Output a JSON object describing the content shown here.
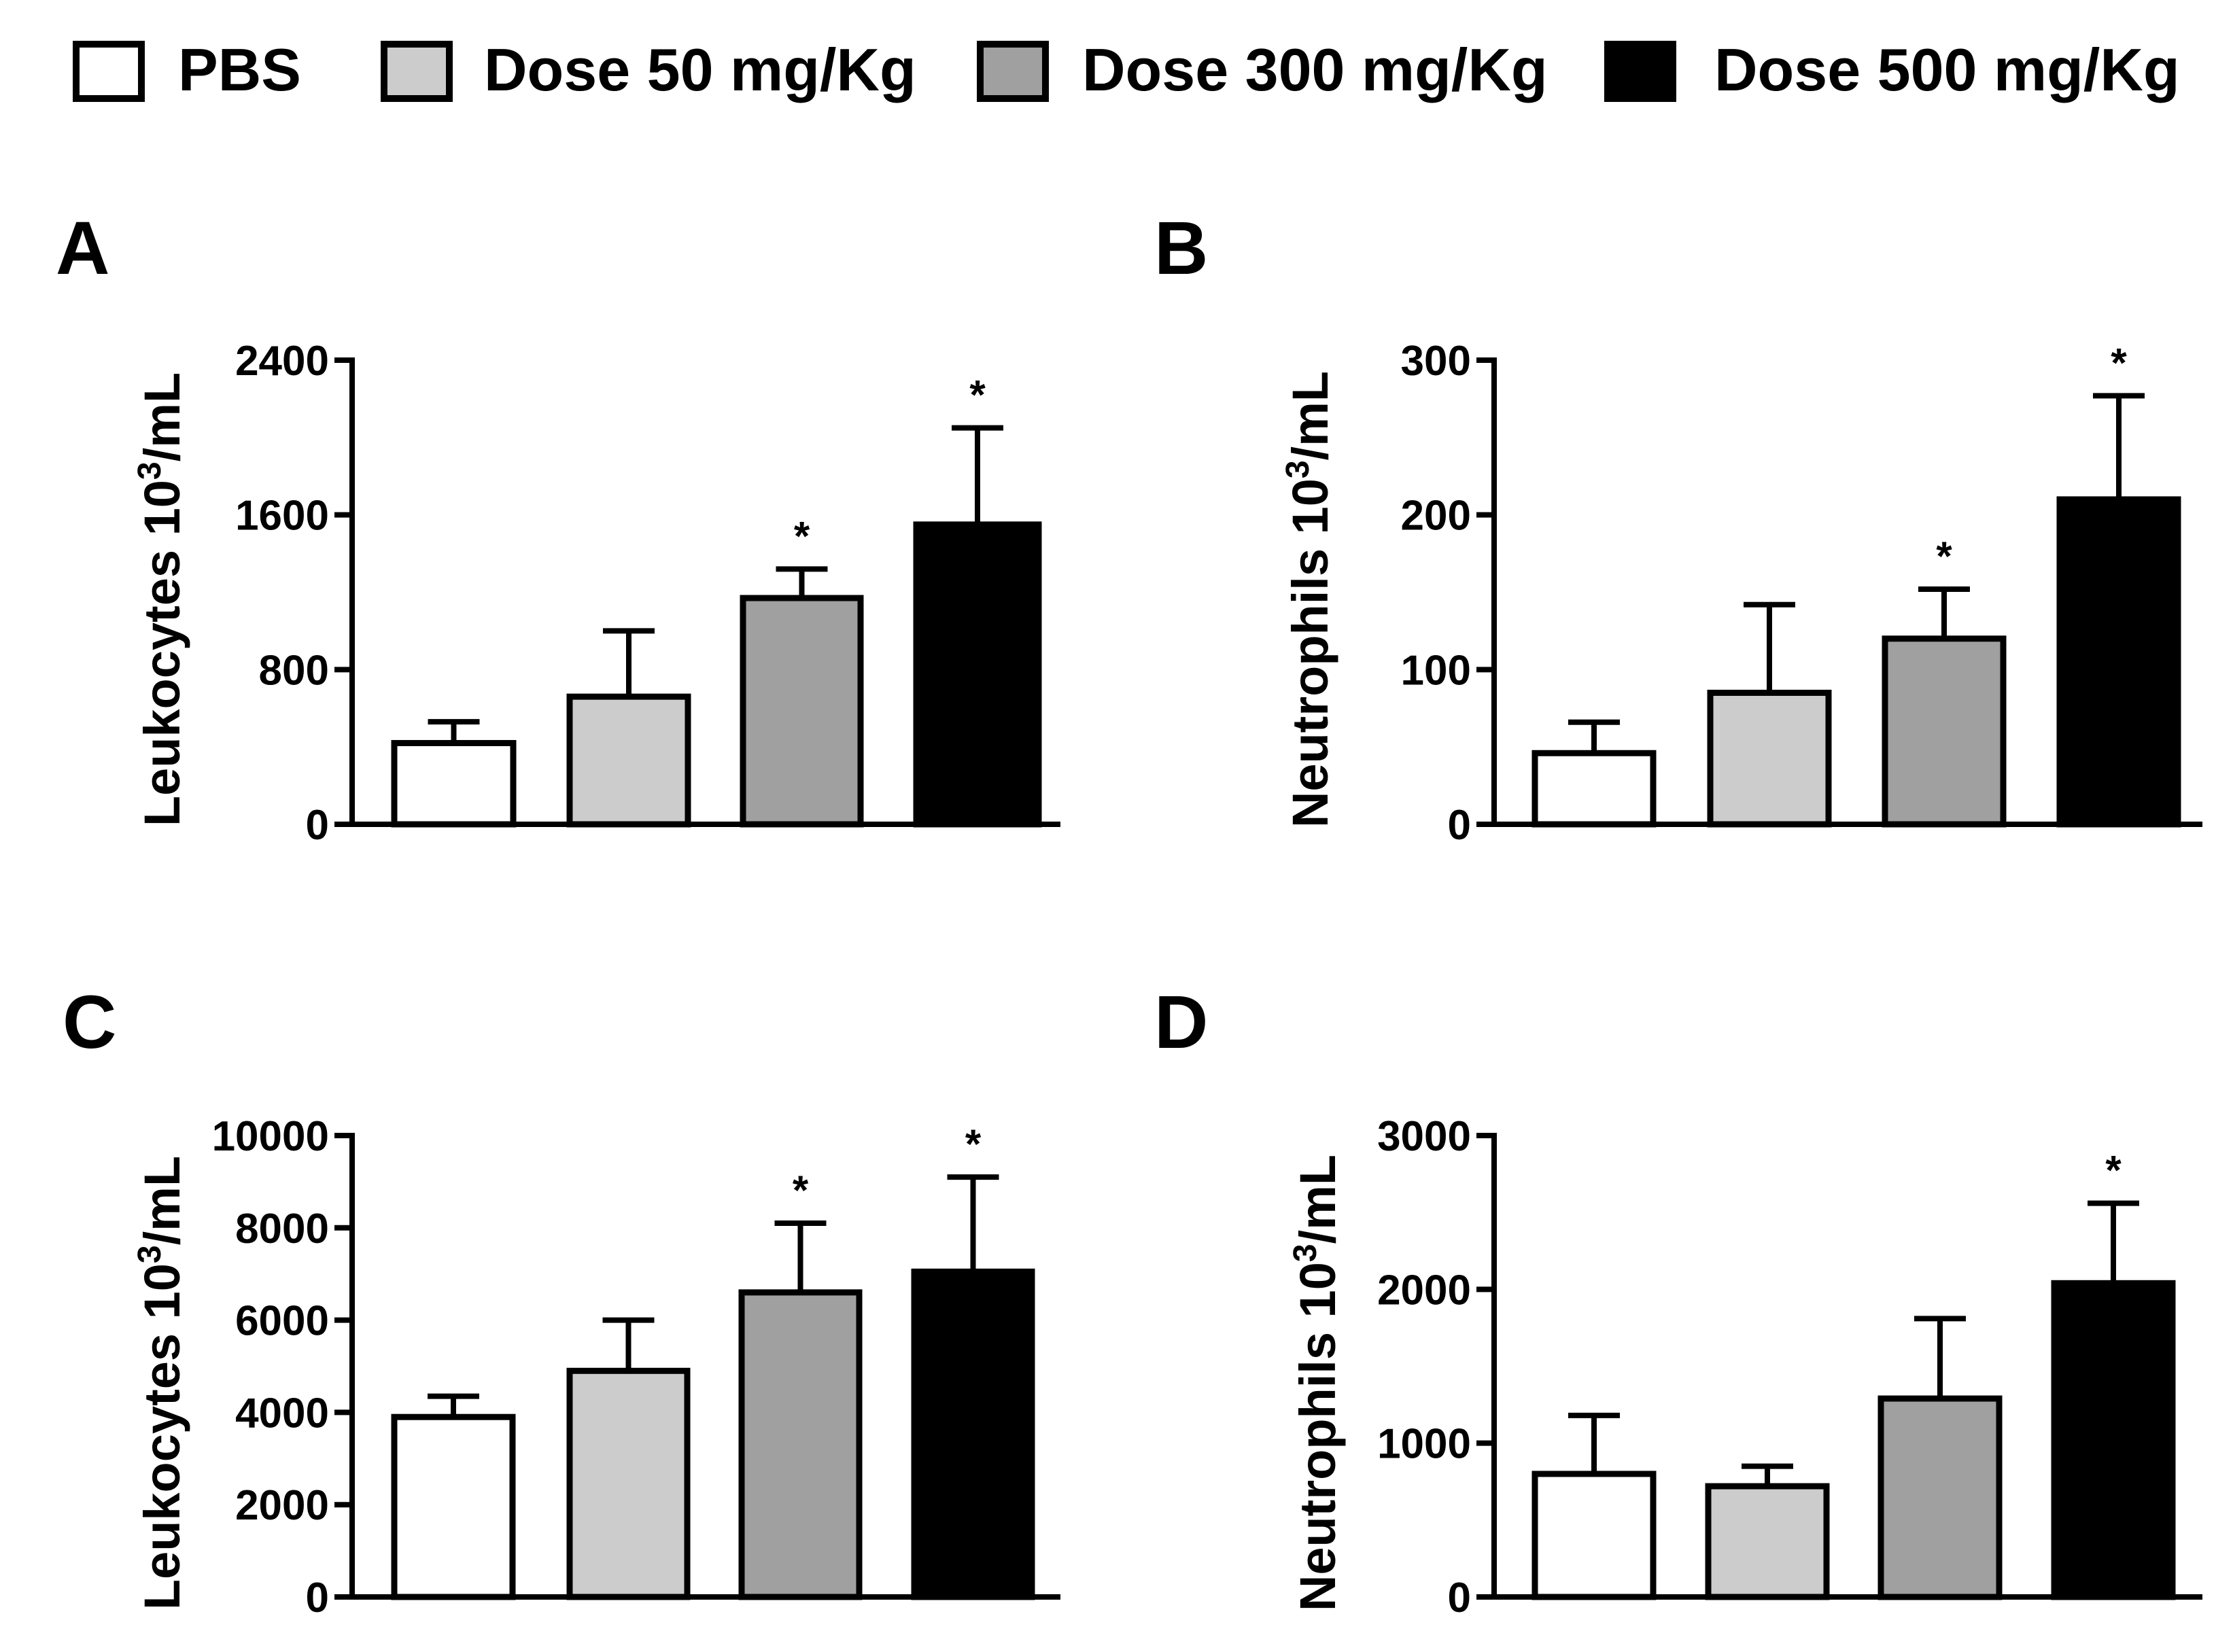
{
  "legend": {
    "items": [
      {
        "label": "PBS",
        "color": "#ffffff"
      },
      {
        "label": "Dose 50 mg/Kg",
        "color": "#cccccc"
      },
      {
        "label": "Dose 300 mg/Kg",
        "color": "#a0a0a0"
      },
      {
        "label": "Dose 500 mg/Kg",
        "color": "#000000"
      }
    ]
  },
  "chart_data": [
    {
      "panel": "A",
      "type": "bar",
      "ylabel_main": "Leukocytes 10",
      "ylabel_sup": "3",
      "ylabel_unit": "/mL",
      "categories": [
        "PBS",
        "Dose 50 mg/Kg",
        "Dose 300 mg/Kg",
        "Dose 500 mg/Kg"
      ],
      "values": [
        420,
        660,
        1170,
        1550
      ],
      "errors": [
        110,
        340,
        150,
        500
      ],
      "significant": [
        "",
        "",
        "*",
        "*"
      ],
      "ylim": [
        0,
        2400
      ],
      "yticks": [
        "0",
        "800",
        "1600",
        "2400"
      ]
    },
    {
      "panel": "B",
      "type": "bar",
      "ylabel_main": "Neutrophils 10",
      "ylabel_sup": "3",
      "ylabel_unit": "/mL",
      "categories": [
        "PBS",
        "Dose 50 mg/Kg",
        "Dose 300 mg/Kg",
        "Dose 500 mg/Kg"
      ],
      "values": [
        46,
        85,
        120,
        210
      ],
      "errors": [
        20,
        57,
        32,
        67
      ],
      "significant": [
        "",
        "",
        "*",
        "*"
      ],
      "ylim": [
        0,
        300
      ],
      "yticks": [
        "0",
        "100",
        "200",
        "300"
      ]
    },
    {
      "panel": "C",
      "type": "bar",
      "ylabel_main": "Leukocytes 10",
      "ylabel_sup": "3",
      "ylabel_unit": "/mL",
      "categories": [
        "PBS",
        "Dose 50 mg/Kg",
        "Dose 300 mg/Kg",
        "Dose 500 mg/Kg"
      ],
      "values": [
        3900,
        4900,
        6600,
        7050
      ],
      "errors": [
        450,
        1100,
        1500,
        2050
      ],
      "significant": [
        "",
        "",
        "*",
        "*"
      ],
      "ylim": [
        0,
        10000
      ],
      "yticks": [
        "0",
        "2000",
        "4000",
        "6000",
        "8000",
        "10000"
      ]
    },
    {
      "panel": "D",
      "type": "bar",
      "ylabel_main": "Neutrophils 10",
      "ylabel_sup": "3",
      "ylabel_unit": "/mL",
      "categories": [
        "PBS",
        "Dose 50 mg/Kg",
        "Dose 300 mg/Kg",
        "Dose 500 mg/Kg"
      ],
      "values": [
        800,
        720,
        1290,
        2040
      ],
      "errors": [
        380,
        130,
        520,
        520
      ],
      "significant": [
        "",
        "",
        "",
        "*"
      ],
      "ylim": [
        0,
        3000
      ],
      "yticks": [
        "0",
        "1000",
        "2000",
        "3000"
      ]
    }
  ]
}
